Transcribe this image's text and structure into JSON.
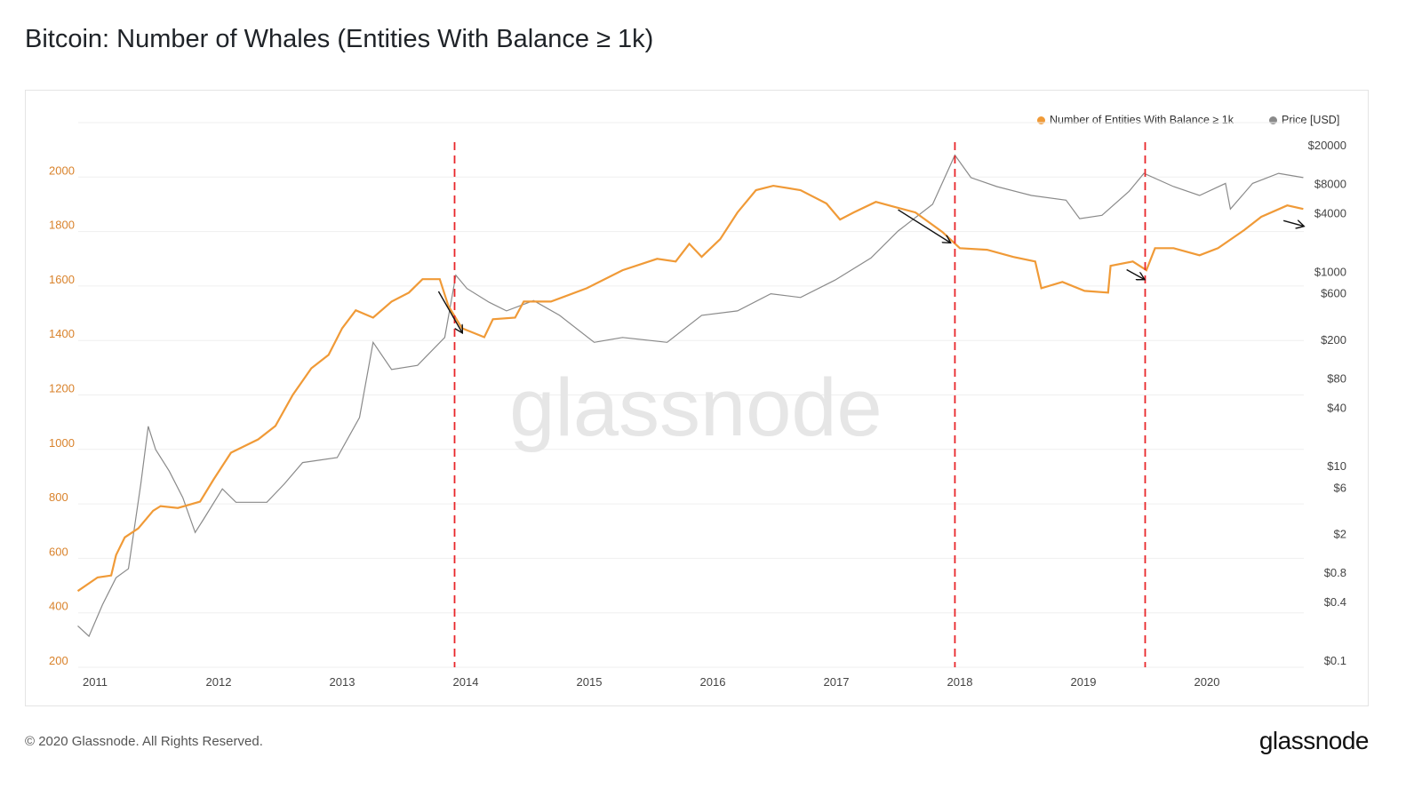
{
  "title": "Bitcoin: Number of Whales (Entities With Balance ≥ 1k)",
  "footer": {
    "copyright": "© 2020 Glassnode. All Rights Reserved.",
    "logo": "glassnode"
  },
  "watermark": "glassnode",
  "colors": {
    "whales": "#f09a37",
    "price": "#8a8a8a",
    "left_axis": "#d9822b",
    "annotation_line": "#e8262a",
    "arrow": "#111111",
    "grid": "#efefef"
  },
  "chart_data": {
    "type": "line",
    "title": "Bitcoin: Number of Whales (Entities With Balance ≥ 1k)",
    "legend": {
      "placement": "top-right",
      "entries": [
        "Number of Entities With Balance ≥ 1k",
        "Price [USD]"
      ]
    },
    "grid": true,
    "x": {
      "range": [
        2010.86,
        2020.78
      ],
      "ticks": [
        "2011",
        "2012",
        "2013",
        "2014",
        "2015",
        "2016",
        "2017",
        "2018",
        "2019",
        "2020"
      ]
    },
    "y_left": {
      "range": [
        200,
        2200
      ],
      "ticks": [
        "200",
        "400",
        "600",
        "800",
        "1000",
        "1200",
        "1400",
        "1600",
        "1800",
        "2000"
      ]
    },
    "y_right": {
      "scale": "log",
      "range": [
        0.1,
        20000
      ],
      "ticks": [
        {
          "v": 0.1,
          "label": "$0.1"
        },
        {
          "v": 0.4,
          "label": "$0.4"
        },
        {
          "v": 0.8,
          "label": "$0.8"
        },
        {
          "v": 2,
          "label": "$2"
        },
        {
          "v": 6,
          "label": "$6"
        },
        {
          "v": 10,
          "label": "$10"
        },
        {
          "v": 40,
          "label": "$40"
        },
        {
          "v": 80,
          "label": "$80"
        },
        {
          "v": 200,
          "label": "$200"
        },
        {
          "v": 600,
          "label": "$600"
        },
        {
          "v": 1000,
          "label": "$1000"
        },
        {
          "v": 4000,
          "label": "$4000"
        },
        {
          "v": 8000,
          "label": "$8000"
        },
        {
          "v": 20000,
          "label": "$20000"
        }
      ]
    },
    "series": [
      {
        "name": "Number of Entities With Balance ≥ 1k",
        "axis": "left",
        "points": [
          [
            2010.86,
            480
          ],
          [
            2011.02,
            530
          ],
          [
            2011.13,
            537
          ],
          [
            2011.17,
            612
          ],
          [
            2011.24,
            677
          ],
          [
            2011.35,
            710
          ],
          [
            2011.47,
            775
          ],
          [
            2011.53,
            792
          ],
          [
            2011.67,
            785
          ],
          [
            2011.85,
            808
          ],
          [
            2011.96,
            890
          ],
          [
            2012.1,
            988
          ],
          [
            2012.32,
            1037
          ],
          [
            2012.46,
            1086
          ],
          [
            2012.6,
            1200
          ],
          [
            2012.75,
            1298
          ],
          [
            2012.89,
            1347
          ],
          [
            2013.0,
            1445
          ],
          [
            2013.11,
            1511
          ],
          [
            2013.25,
            1484
          ],
          [
            2013.4,
            1543
          ],
          [
            2013.54,
            1576
          ],
          [
            2013.65,
            1625
          ],
          [
            2013.79,
            1625
          ],
          [
            2013.86,
            1527
          ],
          [
            2013.97,
            1445
          ],
          [
            2014.15,
            1412
          ],
          [
            2014.22,
            1478
          ],
          [
            2014.4,
            1484
          ],
          [
            2014.47,
            1543
          ],
          [
            2014.69,
            1543
          ],
          [
            2014.98,
            1592
          ],
          [
            2015.27,
            1658
          ],
          [
            2015.55,
            1700
          ],
          [
            2015.7,
            1690
          ],
          [
            2015.81,
            1755
          ],
          [
            2015.91,
            1707
          ],
          [
            2016.06,
            1772
          ],
          [
            2016.2,
            1870
          ],
          [
            2016.35,
            1952
          ],
          [
            2016.49,
            1968
          ],
          [
            2016.71,
            1952
          ],
          [
            2016.92,
            1903
          ],
          [
            2017.03,
            1844
          ],
          [
            2017.14,
            1870
          ],
          [
            2017.32,
            1909
          ],
          [
            2017.5,
            1887
          ],
          [
            2017.64,
            1870
          ],
          [
            2017.86,
            1798
          ],
          [
            2018.0,
            1739
          ],
          [
            2018.22,
            1733
          ],
          [
            2018.43,
            1707
          ],
          [
            2018.61,
            1690
          ],
          [
            2018.66,
            1592
          ],
          [
            2018.83,
            1615
          ],
          [
            2019.01,
            1582
          ],
          [
            2019.2,
            1576
          ],
          [
            2019.22,
            1674
          ],
          [
            2019.4,
            1690
          ],
          [
            2019.51,
            1658
          ],
          [
            2019.58,
            1739
          ],
          [
            2019.73,
            1739
          ],
          [
            2019.94,
            1713
          ],
          [
            2020.09,
            1739
          ],
          [
            2020.3,
            1805
          ],
          [
            2020.44,
            1854
          ],
          [
            2020.65,
            1896
          ],
          [
            2020.78,
            1883
          ]
        ]
      },
      {
        "name": "Price [USD]",
        "axis": "right",
        "points": [
          [
            2010.86,
            0.23
          ],
          [
            2010.95,
            0.18
          ],
          [
            2011.06,
            0.38
          ],
          [
            2011.17,
            0.72
          ],
          [
            2011.27,
            0.89
          ],
          [
            2011.37,
            6.6
          ],
          [
            2011.43,
            26
          ],
          [
            2011.49,
            15
          ],
          [
            2011.6,
            9
          ],
          [
            2011.71,
            4.8
          ],
          [
            2011.81,
            2.1
          ],
          [
            2011.88,
            2.9
          ],
          [
            2012.03,
            5.9
          ],
          [
            2012.14,
            4.3
          ],
          [
            2012.39,
            4.3
          ],
          [
            2012.53,
            6.6
          ],
          [
            2012.68,
            11
          ],
          [
            2012.96,
            12.4
          ],
          [
            2013.14,
            32
          ],
          [
            2013.25,
            190
          ],
          [
            2013.4,
            100
          ],
          [
            2013.61,
            110
          ],
          [
            2013.83,
            213
          ],
          [
            2013.92,
            930
          ],
          [
            2014.01,
            680
          ],
          [
            2014.19,
            490
          ],
          [
            2014.33,
            400
          ],
          [
            2014.55,
            510
          ],
          [
            2014.76,
            360
          ],
          [
            2015.04,
            190
          ],
          [
            2015.27,
            213
          ],
          [
            2015.63,
            190
          ],
          [
            2015.91,
            360
          ],
          [
            2016.2,
            400
          ],
          [
            2016.47,
            600
          ],
          [
            2016.71,
            550
          ],
          [
            2016.99,
            830
          ],
          [
            2017.28,
            1400
          ],
          [
            2017.5,
            2650
          ],
          [
            2017.78,
            5000
          ],
          [
            2017.96,
            16000
          ],
          [
            2018.09,
            9400
          ],
          [
            2018.3,
            7600
          ],
          [
            2018.58,
            6150
          ],
          [
            2018.86,
            5500
          ],
          [
            2018.97,
            3550
          ],
          [
            2019.15,
            3850
          ],
          [
            2019.37,
            6800
          ],
          [
            2019.49,
            10400
          ],
          [
            2019.73,
            7600
          ],
          [
            2019.94,
            6150
          ],
          [
            2020.15,
            8200
          ],
          [
            2020.19,
            4460
          ],
          [
            2020.37,
            8200
          ],
          [
            2020.58,
            10400
          ],
          [
            2020.78,
            9400
          ]
        ]
      }
    ],
    "annotations": {
      "vertical_lines": [
        2013.91,
        2017.96,
        2019.5
      ],
      "arrows": [
        {
          "from": [
            2013.78,
            1580
          ],
          "to": [
            2013.97,
            1430
          ]
        },
        {
          "from": [
            2017.5,
            1880
          ],
          "to": [
            2017.92,
            1760
          ]
        },
        {
          "from": [
            2019.35,
            1660
          ],
          "to": [
            2019.49,
            1625
          ]
        },
        {
          "from": [
            2020.62,
            1840
          ],
          "to": [
            2020.78,
            1820
          ]
        }
      ]
    }
  }
}
